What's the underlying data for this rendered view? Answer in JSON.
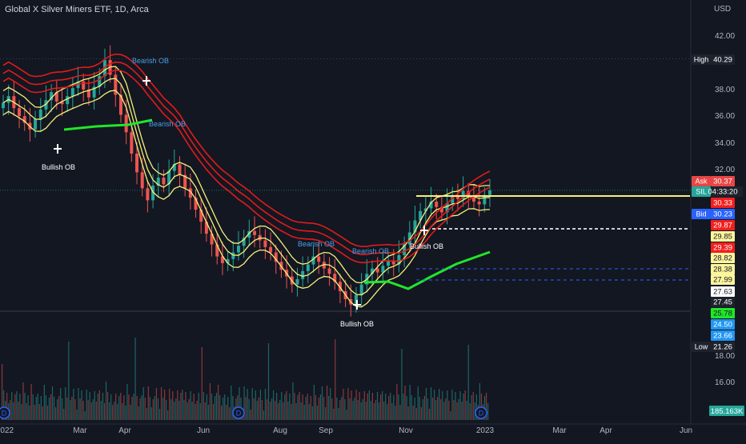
{
  "header": {
    "title": "Global X Silver Miners ETF, 1D, Arca",
    "currency": "USD"
  },
  "colors": {
    "background": "#131722",
    "up_candle": "#26a69a",
    "down_candle": "#ef5350",
    "ribbon_red": "#e11b1b",
    "ribbon_yellow": "#f5f07a",
    "ribbon_green": "#22e52a",
    "ask": "#e84545",
    "bid": "#2962ff",
    "axis_text": "#b2b5be"
  },
  "chart_data": {
    "type": "candlestick",
    "symbol": "SIL",
    "timeframe": "1D",
    "price_axis": {
      "min": 15.0,
      "max": 43.0,
      "ticks": [
        "42.00",
        "38.00",
        "36.00",
        "34.00",
        "32.00",
        "18.00",
        "16.00"
      ]
    },
    "time_axis": {
      "labels": [
        "2022",
        "Mar",
        "Apr",
        "Jun",
        "Aug",
        "Sep",
        "Nov",
        "2023",
        "Mar",
        "Apr",
        "Jun"
      ]
    },
    "price_labels": [
      {
        "tag": "High",
        "value": "40.29",
        "style": "dark"
      },
      {
        "tag": "Ask",
        "value": "30.37",
        "style": "ask"
      },
      {
        "tag": "SIL",
        "value": "30.45",
        "extra": "04:33:20",
        "style": "last"
      },
      {
        "tag": "",
        "value": "30.33",
        "style": "red"
      },
      {
        "tag": "Bid",
        "value": "30.23",
        "style": "bid"
      },
      {
        "tag": "",
        "value": "29.87",
        "style": "red"
      },
      {
        "tag": "",
        "value": "29.85",
        "style": "yellow"
      },
      {
        "tag": "",
        "value": "29.39",
        "style": "red"
      },
      {
        "tag": "",
        "value": "28.82",
        "style": "yellow"
      },
      {
        "tag": "",
        "value": "28.38",
        "style": "yellow"
      },
      {
        "tag": "",
        "value": "27.99",
        "style": "yellow"
      },
      {
        "tag": "",
        "value": "27.63",
        "style": "white"
      },
      {
        "tag": "",
        "value": "27.45",
        "style": "dark"
      },
      {
        "tag": "",
        "value": "25.78",
        "style": "green"
      },
      {
        "tag": "",
        "value": "24.50",
        "style": "blue"
      },
      {
        "tag": "",
        "value": "23.66",
        "style": "blue"
      },
      {
        "tag": "Low",
        "value": "21.26",
        "style": "dark"
      }
    ],
    "volume_label": "185.163K",
    "annotations": [
      {
        "text": "Bearish OB",
        "color": "blue"
      },
      {
        "text": "Bearish OB",
        "color": "blue"
      },
      {
        "text": "Bearish OB",
        "color": "blue"
      },
      {
        "text": "Bearish OB",
        "color": "blue"
      },
      {
        "text": "Bullish OB",
        "color": "white"
      },
      {
        "text": "Bullish OB",
        "color": "white"
      },
      {
        "text": "Bullish OB",
        "color": "white"
      }
    ],
    "series_description": "Daily candles from Jan 2022 to Jan 2023; price falls from ~40 to ~21 then recovers to ~30",
    "candles_close_path": [
      37.0,
      37.5,
      36.6,
      36.0,
      35.5,
      35.0,
      35.8,
      36.5,
      37.2,
      37.8,
      37.1,
      36.9,
      37.5,
      38.1,
      38.6,
      38.0,
      37.4,
      38.2,
      39.0,
      40.2,
      39.1,
      37.6,
      36.1,
      34.8,
      33.2,
      31.8,
      30.6,
      29.7,
      30.8,
      31.4,
      30.9,
      31.9,
      32.4,
      31.6,
      30.6,
      29.9,
      29.0,
      28.1,
      27.2,
      26.4,
      25.5,
      25.0,
      25.3,
      25.8,
      26.3,
      26.9,
      27.4,
      27.1,
      26.7,
      26.2,
      25.8,
      25.1,
      24.5,
      24.0,
      23.4,
      23.8,
      24.4,
      24.9,
      25.5,
      25.1,
      24.6,
      24.2,
      23.6,
      22.9,
      22.3,
      21.9,
      22.6,
      23.4,
      24.2,
      24.6,
      24.3,
      24.8,
      25.2,
      24.9,
      25.6,
      26.4,
      27.3,
      28.2,
      28.9,
      29.1,
      29.6,
      29.2,
      28.8,
      29.5,
      30.1,
      29.8,
      30.4,
      30.0,
      29.6,
      29.4,
      30.1,
      30.45
    ]
  }
}
